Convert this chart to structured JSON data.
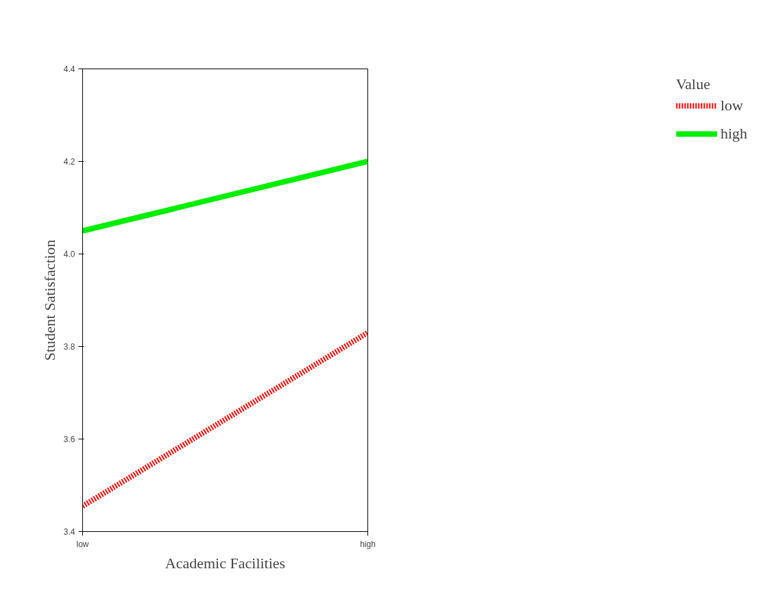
{
  "chart_data": {
    "type": "line",
    "xlabel": "Academic Facilities",
    "ylabel": "Student Satisfaction",
    "legend_title": "Value",
    "categories": [
      "low",
      "high"
    ],
    "series": [
      {
        "name": "low",
        "color": "#ff0000",
        "values": [
          3.455,
          3.83
        ],
        "line_style": "dotted"
      },
      {
        "name": "high",
        "color": "#00ee00",
        "values": [
          4.05,
          4.2
        ],
        "line_style": "solid"
      }
    ],
    "ylim": [
      3.4,
      4.4
    ],
    "yticks": [
      3.4,
      3.6,
      3.8,
      {
        "value": 4.0,
        "label": "4.0"
      },
      4.2,
      4.4
    ],
    "grid": false,
    "legend": "right",
    "marker": "none"
  }
}
